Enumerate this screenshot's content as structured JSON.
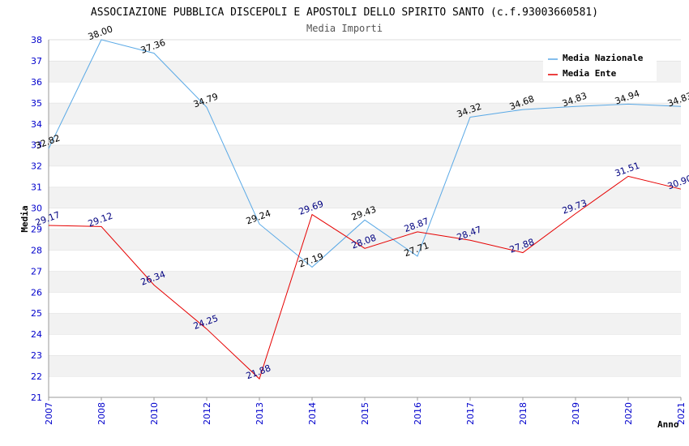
{
  "chart_data": {
    "type": "line",
    "title": "ASSOCIAZIONE PUBBLICA DISCEPOLI E APOSTOLI DELLO SPIRITO SANTO (c.f.93003660581)",
    "subtitle": "Media Importi",
    "xlabel": "Anno",
    "ylabel": "Media",
    "x": [
      "2007",
      "2008",
      "2010",
      "2012",
      "2013",
      "2014",
      "2015",
      "2016",
      "2017",
      "2018",
      "2019",
      "2020",
      "2021"
    ],
    "ylim": [
      21,
      38
    ],
    "yticks": [
      21,
      22,
      23,
      24,
      25,
      26,
      27,
      28,
      29,
      30,
      31,
      32,
      33,
      34,
      35,
      36,
      37,
      38
    ],
    "grid": "horizontal-bands",
    "legend_position": "top-right",
    "series": [
      {
        "name": "Media Nazionale",
        "color": "#5aa9e6",
        "label_color": "#000000",
        "values": [
          32.82,
          38.0,
          37.36,
          34.79,
          29.24,
          27.19,
          29.43,
          27.71,
          34.32,
          34.68,
          34.83,
          34.94,
          34.83
        ],
        "labels": [
          "32.82",
          "38.00",
          "37.36",
          "34.79",
          "29.24",
          "27.19",
          "29.43",
          "27.71",
          "34.32",
          "34.68",
          "34.83",
          "34.94",
          "34.83"
        ]
      },
      {
        "name": "Media Ente",
        "color": "#e60000",
        "label_color": "#000080",
        "values": [
          29.17,
          29.12,
          26.34,
          24.25,
          21.88,
          29.69,
          28.08,
          28.87,
          28.47,
          27.88,
          29.73,
          31.51,
          30.9
        ],
        "labels": [
          "29.17",
          "29.12",
          "26.34",
          "24.25",
          "21.88",
          "29.69",
          "28.08",
          "28.87",
          "28.47",
          "27.88",
          "29.73",
          "31.51",
          "30.90"
        ]
      }
    ]
  }
}
